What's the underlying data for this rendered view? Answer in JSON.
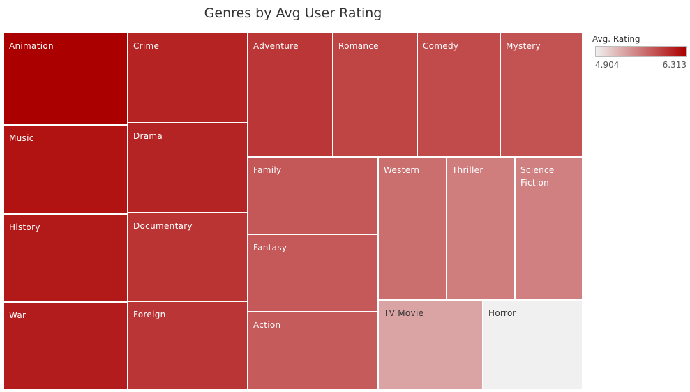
{
  "chart_data": {
    "type": "treemap",
    "title": "Genres by Avg User Rating",
    "color_scale": {
      "title": "Avg. Rating",
      "min": 4.904,
      "max": 6.313,
      "min_label": "4.904",
      "max_label": "6.313",
      "min_color": "#f0f0f0",
      "max_color": "#ab0000",
      "legend_position": "top-right"
    },
    "items": [
      {
        "label": "Animation",
        "rating": 6.313
      },
      {
        "label": "Music",
        "rating": 6.2
      },
      {
        "label": "History",
        "rating": 6.16
      },
      {
        "label": "War",
        "rating": 6.15
      },
      {
        "label": "Crime",
        "rating": 6.11
      },
      {
        "label": "Drama",
        "rating": 6.1
      },
      {
        "label": "Documentary",
        "rating": 6.01
      },
      {
        "label": "Foreign",
        "rating": 6.0
      },
      {
        "label": "Adventure",
        "rating": 5.99
      },
      {
        "label": "Romance",
        "rating": 5.91
      },
      {
        "label": "Comedy",
        "rating": 5.87
      },
      {
        "label": "Mystery",
        "rating": 5.83
      },
      {
        "label": "Family",
        "rating": 5.8
      },
      {
        "label": "Fantasy",
        "rating": 5.79
      },
      {
        "label": "Action",
        "rating": 5.78
      },
      {
        "label": "Western",
        "rating": 5.67
      },
      {
        "label": "Thriller",
        "rating": 5.58
      },
      {
        "label": "Science\nFiction",
        "rating": 5.56
      },
      {
        "label": "TV Movie",
        "rating": 5.35
      },
      {
        "label": "Horror",
        "rating": 4.904
      }
    ]
  }
}
